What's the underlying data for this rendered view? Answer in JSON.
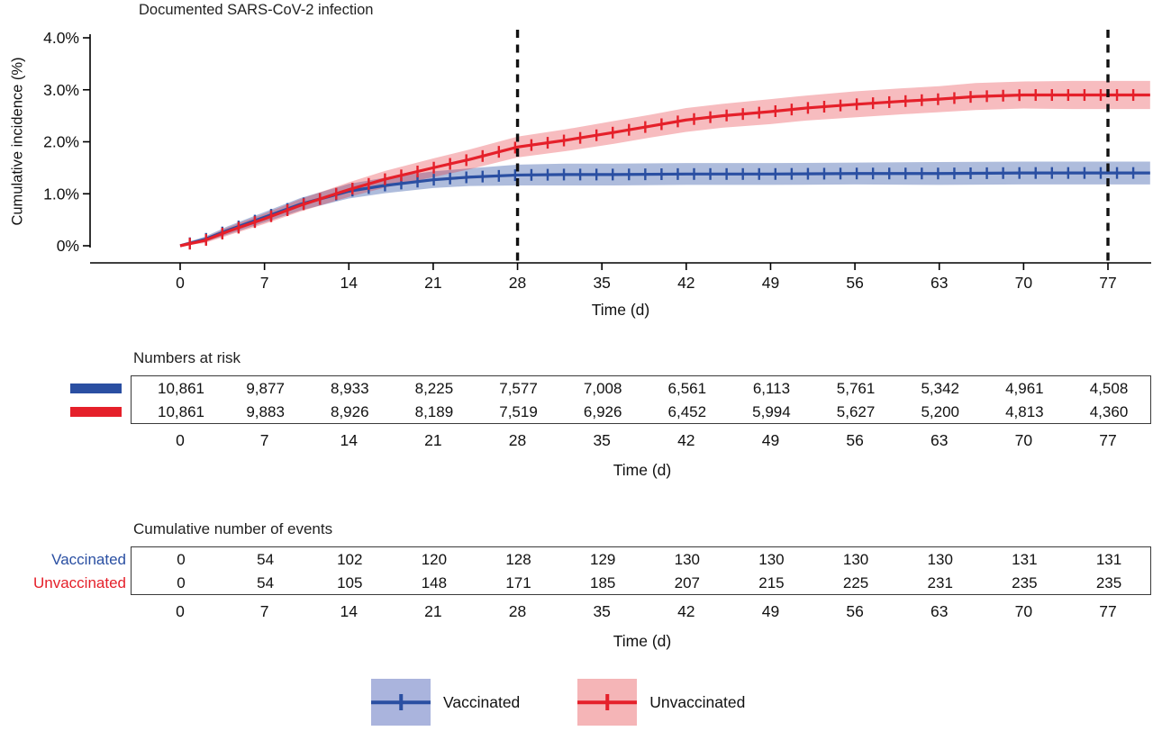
{
  "chart_data": {
    "type": "line",
    "title": "Documented SARS-CoV-2 infection",
    "xlabel": "Time (d)",
    "ylabel": "Cumulative incidence (%)",
    "xlim": [
      0,
      80.5
    ],
    "ylim": [
      0,
      4
    ],
    "xticks": [
      0,
      7,
      14,
      21,
      28,
      35,
      42,
      49,
      56,
      63,
      70,
      77
    ],
    "ytick_values": [
      0,
      1,
      2,
      3,
      4
    ],
    "ytick_labels": [
      "0%",
      "1.0%",
      "2.0%",
      "3.0%",
      "4.0%"
    ],
    "dashed_reference_days": [
      28,
      77
    ],
    "series": [
      {
        "name": "Vaccinated",
        "color": "#2a4fa2",
        "band_opacity": 0.38,
        "x": [
          0,
          2,
          4,
          7,
          10,
          14,
          17,
          21,
          24,
          28,
          32,
          36,
          42,
          49,
          56,
          63,
          70,
          77,
          80.5
        ],
        "y": [
          0,
          0.12,
          0.3,
          0.55,
          0.8,
          1.05,
          1.16,
          1.27,
          1.32,
          1.36,
          1.37,
          1.37,
          1.38,
          1.38,
          1.39,
          1.39,
          1.4,
          1.4,
          1.4
        ],
        "ci_halfwidth": [
          0.03,
          0.05,
          0.08,
          0.1,
          0.12,
          0.14,
          0.15,
          0.16,
          0.17,
          0.2,
          0.21,
          0.21,
          0.21,
          0.21,
          0.21,
          0.22,
          0.22,
          0.22,
          0.22
        ]
      },
      {
        "name": "Unvaccinated",
        "color": "#e5202a",
        "band_opacity": 0.3,
        "x": [
          0,
          2,
          4,
          7,
          10,
          14,
          17,
          21,
          24,
          28,
          32,
          36,
          39,
          42,
          45,
          49,
          52,
          56,
          60,
          63,
          66,
          70,
          74,
          77,
          80.5
        ],
        "y": [
          0,
          0.1,
          0.28,
          0.52,
          0.78,
          1.08,
          1.28,
          1.5,
          1.66,
          1.9,
          2.03,
          2.18,
          2.3,
          2.42,
          2.5,
          2.58,
          2.65,
          2.72,
          2.78,
          2.82,
          2.87,
          2.9,
          2.9,
          2.9,
          2.9
        ],
        "ci_halfwidth": [
          0.03,
          0.05,
          0.08,
          0.1,
          0.12,
          0.14,
          0.16,
          0.18,
          0.19,
          0.2,
          0.21,
          0.22,
          0.22,
          0.23,
          0.23,
          0.24,
          0.24,
          0.25,
          0.25,
          0.25,
          0.26,
          0.26,
          0.27,
          0.27,
          0.27
        ]
      }
    ]
  },
  "risk_table": {
    "title": "Numbers at risk",
    "xlabel": "Time (d)",
    "rows": [
      {
        "name": "Vaccinated",
        "color": "#2a4fa2",
        "values": [
          "10,861",
          "9,877",
          "8,933",
          "8,225",
          "7,577",
          "7,008",
          "6,561",
          "6,113",
          "5,761",
          "5,342",
          "4,961",
          "4,508"
        ]
      },
      {
        "name": "Unvaccinated",
        "color": "#e5202a",
        "values": [
          "10,861",
          "9,883",
          "8,926",
          "8,189",
          "7,519",
          "6,926",
          "6,452",
          "5,994",
          "5,627",
          "5,200",
          "4,813",
          "4,360"
        ]
      }
    ]
  },
  "events_table": {
    "title": "Cumulative number of events",
    "xlabel": "Time (d)",
    "rows": [
      {
        "name": "Vaccinated",
        "color": "#2a4fa2",
        "values": [
          "0",
          "54",
          "102",
          "120",
          "128",
          "129",
          "130",
          "130",
          "130",
          "130",
          "131",
          "131"
        ]
      },
      {
        "name": "Unvaccinated",
        "color": "#e5202a",
        "values": [
          "0",
          "54",
          "105",
          "148",
          "171",
          "185",
          "207",
          "215",
          "225",
          "231",
          "235",
          "235"
        ]
      }
    ]
  },
  "legend": {
    "items": [
      {
        "label": "Vaccinated",
        "color": "#2a4fa2",
        "band": "#aab4dd"
      },
      {
        "label": "Unvaccinated",
        "color": "#e5202a",
        "band": "#f5b5b7"
      }
    ]
  }
}
